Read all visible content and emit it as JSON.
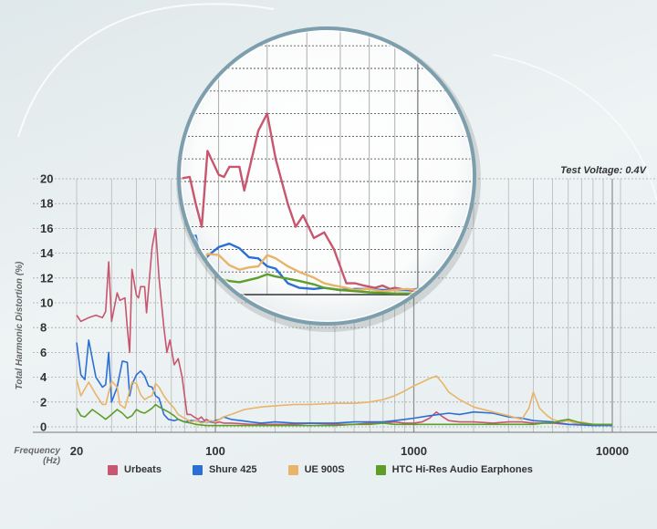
{
  "chart_data": {
    "type": "line",
    "xscale": "log",
    "xlim": [
      20,
      11000
    ],
    "ylim": [
      0,
      20
    ],
    "grid": true,
    "xlabel": "Frequency",
    "xlabel_unit": "(Hz)",
    "ylabel": "Total Harmonic Distortion (%)",
    "annotation": "Test Voltage: 0.4V",
    "xticks": [
      "20",
      "100",
      "1000",
      "10000"
    ],
    "yticks": [
      "0",
      "2",
      "4",
      "6",
      "8",
      "10",
      "12",
      "14",
      "16",
      "18",
      "20"
    ],
    "legend_position": "bottom",
    "inset": "magnified view of 20–1000 Hz region",
    "series": [
      {
        "name": "Urbeats",
        "color": "#c8566e",
        "x": [
          20,
          21,
          23,
          25,
          27,
          28,
          29,
          30,
          32,
          33,
          35,
          36,
          37,
          38,
          40,
          41,
          42,
          44,
          45,
          48,
          50,
          52,
          55,
          57,
          59,
          62,
          65,
          68,
          72,
          75,
          78,
          82,
          85,
          88,
          90,
          95,
          100,
          105,
          110,
          120,
          135,
          150,
          170,
          200,
          250,
          300,
          400,
          500,
          600,
          700,
          800,
          900,
          1000,
          1100,
          1200,
          1300,
          1400,
          1500,
          1700,
          2000,
          2500,
          3000,
          3500,
          4000,
          5000,
          6000,
          8000,
          10000
        ],
        "values": [
          9,
          8.5,
          8.8,
          9,
          8.8,
          9.3,
          13.3,
          8.5,
          10.8,
          10.2,
          10.4,
          8,
          6,
          12.7,
          10.6,
          10.4,
          11.3,
          11.3,
          9.2,
          14.5,
          16,
          12,
          8,
          6,
          7,
          5,
          5.5,
          4,
          1,
          1,
          0.8,
          0.6,
          0.8,
          0.5,
          0.6,
          0.4,
          0.3,
          0.4,
          0.3,
          0.3,
          0.25,
          0.2,
          0.2,
          0.2,
          0.2,
          0.3,
          0.2,
          0.2,
          0.3,
          0.3,
          0.4,
          0.3,
          0.3,
          0.4,
          0.7,
          1.2,
          0.8,
          0.5,
          0.4,
          0.4,
          0.3,
          0.4,
          0.4,
          0.3,
          0.3,
          0.2,
          0.2,
          0.2
        ]
      },
      {
        "name": "Shure 425",
        "color": "#2b6fd6",
        "x": [
          20,
          21,
          22,
          23,
          25,
          27,
          28,
          29,
          30,
          32,
          34,
          36,
          37,
          38,
          40,
          42,
          44,
          46,
          48,
          50,
          52,
          55,
          58,
          62,
          65,
          70,
          75,
          80,
          85,
          90,
          95,
          100,
          105,
          110,
          120,
          135,
          150,
          170,
          200,
          250,
          300,
          400,
          500,
          600,
          700,
          800,
          900,
          1000,
          1200,
          1500,
          1700,
          2000,
          2500,
          3000,
          3500,
          4000,
          5000,
          6000,
          8000,
          10000
        ],
        "values": [
          6.8,
          4.2,
          3.8,
          7,
          4,
          3.2,
          3.4,
          6,
          2,
          3.2,
          5.3,
          5.2,
          2.5,
          3.4,
          4.2,
          4.5,
          4.1,
          3.3,
          3.2,
          2.5,
          2.3,
          1,
          0.6,
          0.5,
          0.6,
          0.4,
          0.5,
          0.5,
          0.4,
          0.4,
          0.4,
          0.5,
          0.6,
          0.8,
          0.6,
          0.5,
          0.4,
          0.3,
          0.4,
          0.3,
          0.3,
          0.3,
          0.4,
          0.4,
          0.4,
          0.5,
          0.6,
          0.7,
          0.9,
          1.1,
          1.0,
          1.2,
          1.1,
          0.8,
          0.7,
          0.5,
          0.4,
          0.2,
          0.1,
          0.1
        ]
      },
      {
        "name": "UE 900S",
        "color": "#e8b469",
        "x": [
          20,
          21,
          23,
          25,
          27,
          28,
          30,
          32,
          33,
          35,
          36,
          38,
          40,
          42,
          44,
          46,
          48,
          50,
          52,
          55,
          58,
          62,
          65,
          68,
          72,
          75,
          80,
          85,
          90,
          95,
          100,
          110,
          120,
          140,
          170,
          200,
          250,
          300,
          400,
          500,
          600,
          700,
          800,
          900,
          1000,
          1100,
          1200,
          1300,
          1400,
          1500,
          1700,
          2000,
          2500,
          3000,
          3500,
          3800,
          4000,
          4300,
          4700,
          5000,
          5500,
          6000,
          6500,
          7000,
          8000,
          9000,
          10000
        ],
        "values": [
          3.8,
          2.5,
          3.6,
          2.6,
          1.8,
          1.8,
          3.7,
          3.2,
          1.8,
          1.5,
          2.2,
          3.6,
          3.5,
          2.6,
          2.2,
          2.4,
          2.5,
          3.5,
          3.2,
          2.5,
          2,
          1.5,
          1,
          0.8,
          0.6,
          0.4,
          0.5,
          0.3,
          0.4,
          0.5,
          0.4,
          0.8,
          1.0,
          1.4,
          1.6,
          1.7,
          1.8,
          1.8,
          1.9,
          1.9,
          2.0,
          2.2,
          2.5,
          2.9,
          3.3,
          3.6,
          3.9,
          4.1,
          3.5,
          2.8,
          2.2,
          1.6,
          1.2,
          0.9,
          0.6,
          1.5,
          2.8,
          1.5,
          0.9,
          0.6,
          0.4,
          0.5,
          0.3,
          0.4,
          0.2,
          0.2,
          0.2
        ]
      },
      {
        "name": "HTC Hi-Res Audio Earphones",
        "color": "#5d9e29",
        "x": [
          20,
          21,
          22,
          24,
          26,
          28,
          30,
          32,
          34,
          36,
          38,
          40,
          42,
          44,
          46,
          48,
          50,
          52,
          55,
          58,
          62,
          65,
          70,
          75,
          80,
          90,
          100,
          110,
          120,
          140,
          170,
          200,
          250,
          300,
          400,
          500,
          600,
          700,
          800,
          1000,
          1300,
          1700,
          2000,
          2500,
          3000,
          3500,
          4000,
          4500,
          5000,
          5500,
          6000,
          7000,
          8000,
          10000
        ],
        "values": [
          1.5,
          0.9,
          0.8,
          1.4,
          1.0,
          0.6,
          1.0,
          1.4,
          1.1,
          0.7,
          0.9,
          1.4,
          1.2,
          1.1,
          1.3,
          1.5,
          1.8,
          1.6,
          1.4,
          1.2,
          0.9,
          0.6,
          0.4,
          0.3,
          0.2,
          0.1,
          0.1,
          0.1,
          0.1,
          0.1,
          0.1,
          0.1,
          0.1,
          0.1,
          0.1,
          0.2,
          0.2,
          0.3,
          0.2,
          0.2,
          0.2,
          0.2,
          0.2,
          0.2,
          0.2,
          0.2,
          0.2,
          0.3,
          0.3,
          0.5,
          0.6,
          0.3,
          0.2,
          0.2
        ]
      }
    ]
  }
}
